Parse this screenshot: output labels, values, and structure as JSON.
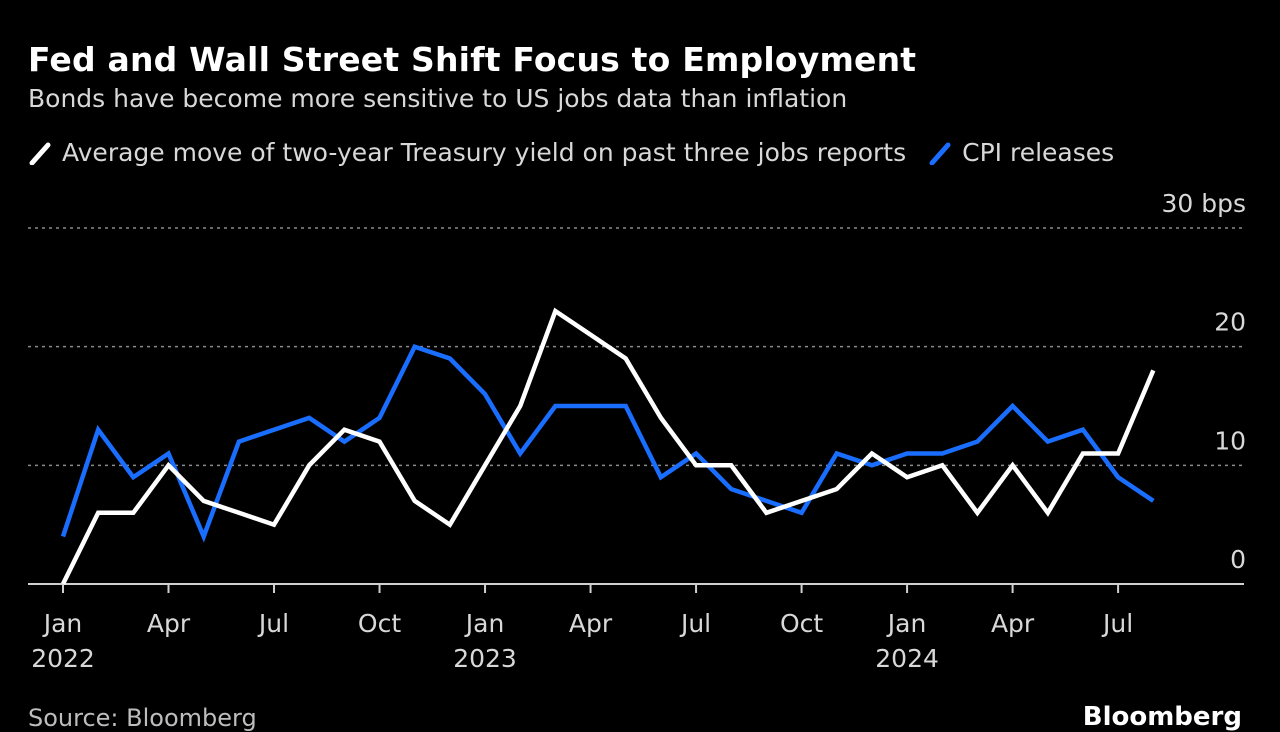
{
  "header": {
    "title": "Fed and Wall Street Shift Focus to Employment",
    "subtitle": "Bonds have become more sensitive to US jobs data than inflation"
  },
  "footer": {
    "source": "Source: Bloomberg",
    "brand": "Bloomberg"
  },
  "colors": {
    "background": "#000000",
    "jobs": "#ffffff",
    "cpi": "#1a6eff",
    "grid": "#8a8a8a",
    "text": "#d8d8d8"
  },
  "chart_data": {
    "type": "line",
    "title": "Fed and Wall Street Shift Focus to Employment",
    "subtitle": "Bonds have become more sensitive to US jobs data than inflation",
    "unit": "bps",
    "ylim": [
      0,
      30
    ],
    "yticks": [
      0,
      10,
      20,
      30
    ],
    "ytick_labels": [
      "0",
      "10",
      "20",
      "30 bps"
    ],
    "grid": true,
    "legend_position": "top-left",
    "xtick_labels": [
      {
        "month": "Jan",
        "year": "2022",
        "x": "2022-01"
      },
      {
        "month": "Apr",
        "year": "",
        "x": "2022-04"
      },
      {
        "month": "Jul",
        "year": "",
        "x": "2022-07"
      },
      {
        "month": "Oct",
        "year": "",
        "x": "2022-10"
      },
      {
        "month": "Jan",
        "year": "2023",
        "x": "2023-01"
      },
      {
        "month": "Apr",
        "year": "",
        "x": "2023-04"
      },
      {
        "month": "Jul",
        "year": "",
        "x": "2023-07"
      },
      {
        "month": "Oct",
        "year": "",
        "x": "2023-10"
      },
      {
        "month": "Jan",
        "year": "2024",
        "x": "2024-01"
      },
      {
        "month": "Apr",
        "year": "",
        "x": "2024-04"
      },
      {
        "month": "Jul",
        "year": "",
        "x": "2024-07"
      }
    ],
    "x": [
      "2022-01",
      "2022-02",
      "2022-03",
      "2022-04",
      "2022-05",
      "2022-06",
      "2022-07",
      "2022-08",
      "2022-09",
      "2022-10",
      "2022-11",
      "2022-12",
      "2023-01",
      "2023-02",
      "2023-03",
      "2023-04",
      "2023-05",
      "2023-06",
      "2023-07",
      "2023-08",
      "2023-09",
      "2023-10",
      "2023-11",
      "2023-12",
      "2024-01",
      "2024-02",
      "2024-03",
      "2024-04",
      "2024-05",
      "2024-06",
      "2024-07",
      "2024-08"
    ],
    "series": [
      {
        "name": "Average move of two-year Treasury yield on past three jobs reports",
        "color": "#ffffff",
        "values": [
          0,
          6,
          6,
          10,
          7,
          6,
          5,
          10,
          13,
          12,
          7,
          5,
          10,
          15,
          23,
          21,
          19,
          14,
          10,
          10,
          6,
          7,
          8,
          11,
          9,
          10,
          6,
          10,
          6,
          11,
          11,
          18
        ]
      },
      {
        "name": "CPI releases",
        "color": "#1a6eff",
        "values": [
          4,
          13,
          9,
          11,
          4,
          12,
          13,
          14,
          12,
          14,
          20,
          19,
          16,
          11,
          15,
          15,
          15,
          9,
          11,
          8,
          7,
          6,
          11,
          10,
          11,
          11,
          12,
          15,
          12,
          13,
          9,
          7
        ]
      }
    ]
  }
}
